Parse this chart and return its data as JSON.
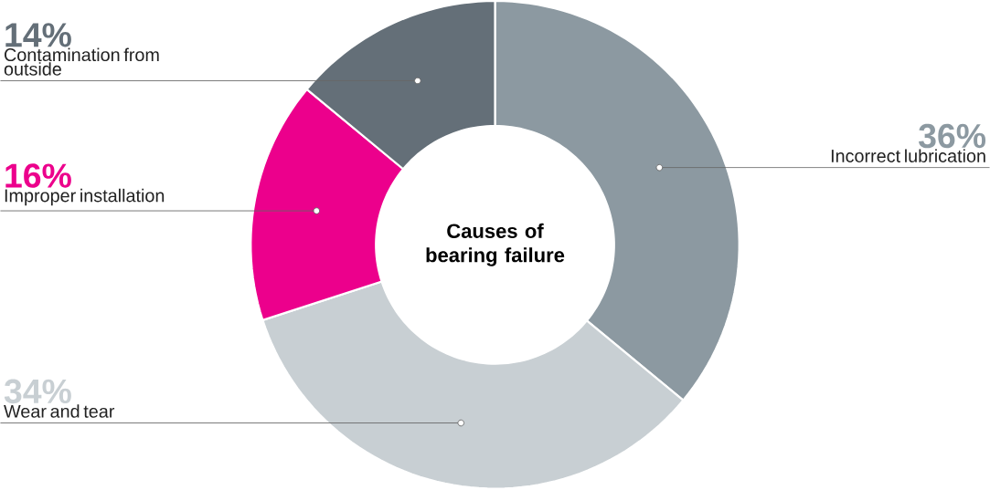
{
  "chart_data": {
    "type": "donut",
    "title": "Causes of bearing failure",
    "categories": [
      "Incorrect lubrication",
      "Wear and tear",
      "Improper installation",
      "Contamination from outside"
    ],
    "values": [
      36,
      34,
      16,
      14
    ],
    "value_labels": [
      "36%",
      "34%",
      "16%",
      "14%"
    ],
    "colors": [
      "#8c99a1",
      "#c8cfd3",
      "#ec008c",
      "#646f78"
    ]
  }
}
